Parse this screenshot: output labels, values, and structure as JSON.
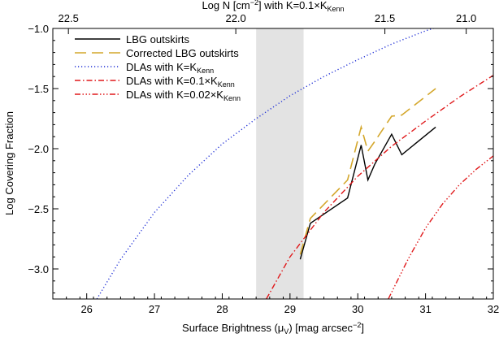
{
  "chart_data": {
    "type": "line",
    "xlabel": "Surface Brightness (μV) [mag arcsec−2]",
    "ylabel": "Log Covering Fraction",
    "top_xlabel": "Log N [cm−2] with K=0.1×KKenn",
    "xlim": [
      25.5,
      32
    ],
    "ylim": [
      -3.25,
      -1.0
    ],
    "x_ticks": [
      26,
      27,
      28,
      29,
      30,
      31,
      32
    ],
    "y_ticks": [
      -1.0,
      -1.5,
      -2.0,
      -2.5,
      -3.0
    ],
    "top_ticks": [
      {
        "label": "22.5",
        "x": 25.73
      },
      {
        "label": "22.0",
        "x": 28.2
      },
      {
        "label": "21.5",
        "x": 30.4
      },
      {
        "label": "21.0",
        "x": 31.6
      }
    ],
    "shaded_band": {
      "x": [
        28.5,
        29.2
      ],
      "color": "#e3e3e3"
    },
    "grid": false,
    "legend_placement": "top-left",
    "series": [
      {
        "name": "LBG outskirts",
        "color": "#000000",
        "dash": "solid",
        "x": [
          29.15,
          29.3,
          29.85,
          30.05,
          30.15,
          30.25,
          30.5,
          30.65,
          31.15
        ],
        "y": [
          -2.92,
          -2.62,
          -2.41,
          -1.97,
          -2.26,
          -2.13,
          -1.88,
          -2.05,
          -1.82
        ]
      },
      {
        "name": "Corrected LBG outskirts",
        "color": "#d4a72c",
        "dash": "longdash",
        "x": [
          29.15,
          29.3,
          29.85,
          30.05,
          30.15,
          30.25,
          30.5,
          30.65,
          31.15
        ],
        "y": [
          -2.88,
          -2.58,
          -2.26,
          -1.82,
          -2.02,
          -1.94,
          -1.73,
          -1.72,
          -1.5
        ]
      },
      {
        "name": "DLAs with K=K",
        "name_sub": "Kenn",
        "color": "#1f2fd6",
        "dash": "dotted",
        "x": [
          26.15,
          26.5,
          27.0,
          27.5,
          28.0,
          28.5,
          29.0,
          29.5,
          30.0,
          30.5,
          31.0,
          31.5,
          32.0
        ],
        "y": [
          -3.25,
          -2.92,
          -2.53,
          -2.22,
          -1.96,
          -1.75,
          -1.56,
          -1.4,
          -1.26,
          -1.13,
          -1.02,
          -0.93,
          -0.85
        ]
      },
      {
        "name": "DLAs with K=0.1×K",
        "name_sub": "Kenn",
        "color": "#e0191b",
        "dash": "dashdot",
        "x": [
          28.65,
          29.0,
          29.5,
          30.0,
          30.5,
          31.0,
          31.5,
          32.0
        ],
        "y": [
          -3.25,
          -2.9,
          -2.53,
          -2.23,
          -1.98,
          -1.77,
          -1.57,
          -1.39
        ]
      },
      {
        "name": "DLAs with K=0.02×K",
        "name_sub": "Kenn",
        "color": "#e0191b",
        "dash": "dashdotdotdot",
        "x": [
          30.45,
          30.75,
          31.0,
          31.25,
          31.5,
          31.75,
          32.0
        ],
        "y": [
          -3.25,
          -2.91,
          -2.66,
          -2.46,
          -2.3,
          -2.17,
          -2.06
        ]
      }
    ]
  }
}
